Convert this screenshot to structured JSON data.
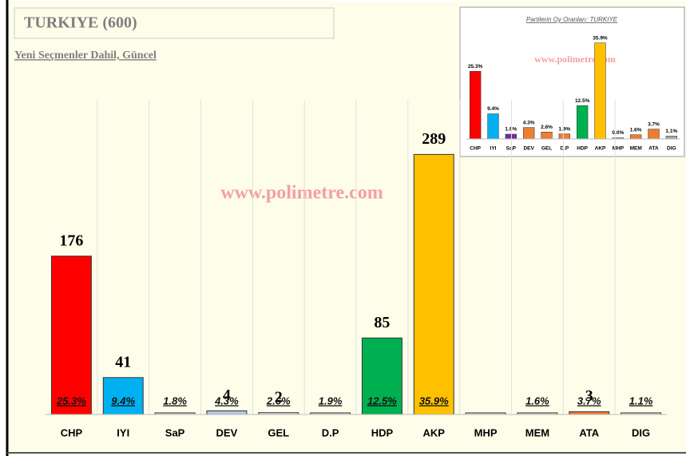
{
  "chart_data": [
    {
      "type": "bar",
      "title": "TURKIYE (600)",
      "subtitle": "Yeni Seçmenler Dahil, Güncel",
      "watermark": "www.polimetre.com",
      "categories": [
        "CHP",
        "IYI",
        "SaP",
        "DEV",
        "GEL",
        "D.P",
        "HDP",
        "AKP",
        "MHP",
        "MEM",
        "ATA",
        "DIG"
      ],
      "values": [
        176,
        41,
        1,
        4,
        2,
        1,
        85,
        289,
        0,
        1,
        3,
        1
      ],
      "value_labels": [
        "176",
        "41",
        null,
        "4",
        "2",
        null,
        "85",
        "289",
        null,
        null,
        "3",
        null
      ],
      "shares": [
        25.3,
        9.4,
        1.8,
        4.3,
        2.6,
        1.9,
        12.5,
        35.9,
        null,
        1.6,
        3.7,
        1.1
      ],
      "share_labels": [
        "25.3%",
        "9.4%",
        "1.8%",
        "4.3%",
        "2.6%",
        "1.9%",
        "12.5%",
        "35.9%",
        null,
        "1.6%",
        "3.7%",
        "1.1%"
      ],
      "colors": [
        "#ff0000",
        "#00b0f0",
        "#d9d9d9",
        "#b4c7e7",
        "#d9d9d9",
        "#d9d9d9",
        "#00b050",
        "#ffc000",
        "#d9d9d9",
        "#d9d9d9",
        "#ed7d31",
        "#d9d9d9"
      ],
      "ylim": [
        0,
        300
      ]
    },
    {
      "type": "bar",
      "title": "Partilerin Oy Oranları: TURKIYE",
      "watermark": "www.polimetre.com",
      "categories": [
        "CHP",
        "IYI",
        "SaP",
        "DEV",
        "GEL",
        "D.P",
        "HDP",
        "AKP",
        "MHP",
        "MEM",
        "ATA",
        "DIG"
      ],
      "values": [
        25.3,
        9.4,
        1.8,
        4.3,
        2.6,
        1.9,
        12.5,
        35.9,
        0.0,
        1.6,
        3.7,
        1.1
      ],
      "value_labels": [
        "25.3%",
        "9.4%",
        "1.8%",
        "4.3%",
        "2.6%",
        "1.9%",
        "12.5%",
        "35.9%",
        "0.0%",
        "1.6%",
        "3.7%",
        "1.1%"
      ],
      "colors": [
        "#ff0000",
        "#00b0f0",
        "#7030a0",
        "#ed7d31",
        "#ed7d31",
        "#ed7d31",
        "#00b050",
        "#ffc000",
        "#a6a6a6",
        "#ed7d31",
        "#ed7d31",
        "#a6a6a6"
      ],
      "ylim": [
        0,
        40
      ]
    }
  ]
}
